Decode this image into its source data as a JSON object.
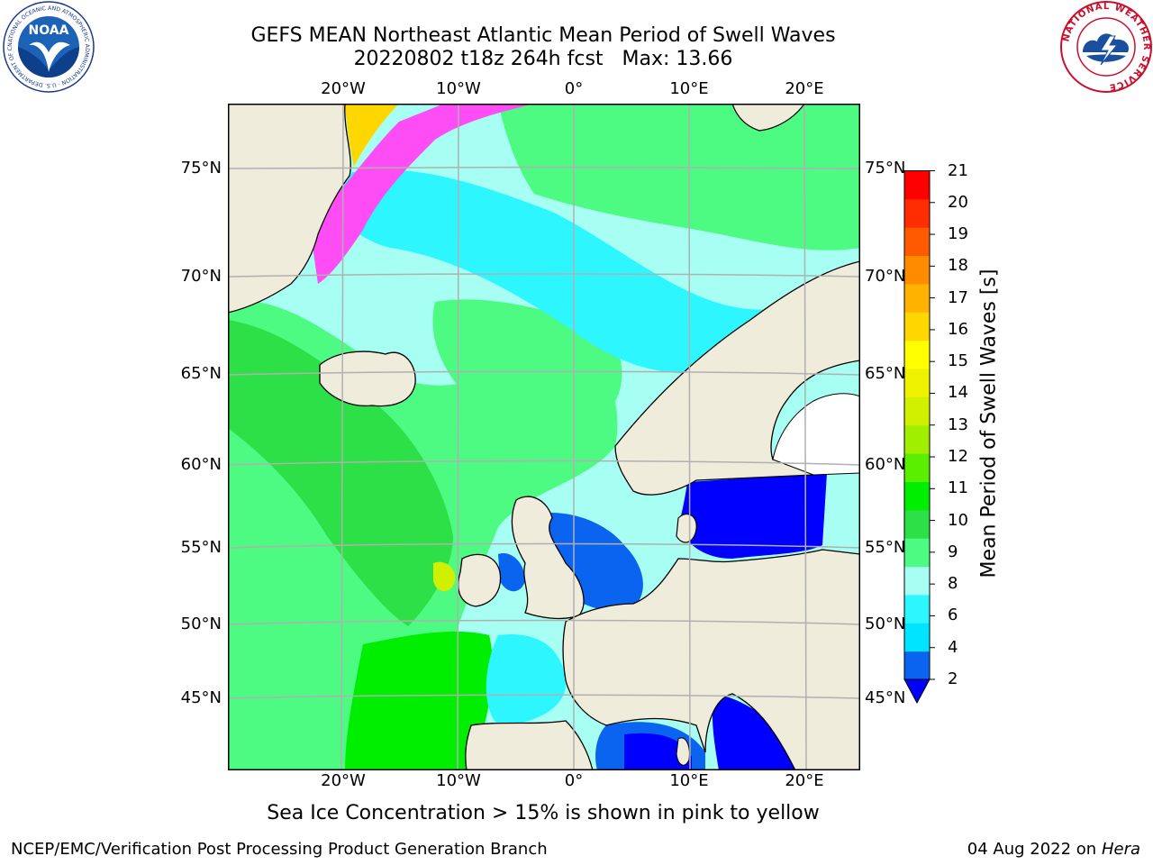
{
  "title": {
    "line1": "GEFS MEAN Northeast Atlantic Mean Period of Swell Waves",
    "line2_date": "20220802 t18z 264h fcst",
    "line2_max": "Max: 13.66"
  },
  "map": {
    "projection": "polar-stereographic",
    "lon_labels": [
      "20°W",
      "10°W",
      "0°",
      "10°E",
      "20°E"
    ],
    "lat_labels_left": [
      "75°N",
      "70°N",
      "65°N",
      "60°N",
      "55°N",
      "50°N",
      "45°N"
    ],
    "lat_labels_right": [
      "75°N",
      "70°N",
      "65°N",
      "60°N",
      "55°N",
      "50°N",
      "45°N"
    ],
    "land_color": "#efecdc",
    "grid": true,
    "region_fill": [
      {
        "region": "north-atlantic-west",
        "swell_period_s": 10
      },
      {
        "region": "bay-of-biscay",
        "swell_period_s": 5
      },
      {
        "region": "north-sea",
        "swell_period_s": 3
      },
      {
        "region": "baltic-sea",
        "swell_period_s": 2
      },
      {
        "region": "mediterranean",
        "swell_period_s": 3
      },
      {
        "region": "greenland-ice-edge",
        "sea_ice": true
      }
    ]
  },
  "colorbar": {
    "label": "Mean Period of Swell Waves [s]",
    "ticks": [
      "21",
      "20",
      "19",
      "18",
      "17",
      "16",
      "15",
      "14",
      "13",
      "12",
      "11",
      "10",
      "9",
      "8",
      "6",
      "4",
      "2"
    ],
    "colors_bottom_to_top": [
      "#0a64f0",
      "#00e5ff",
      "#2ef6ff",
      "#a6fff2",
      "#4dfa82",
      "#2de048",
      "#00ee00",
      "#5aee00",
      "#a0ee00",
      "#d0f000",
      "#eef200",
      "#ffff00",
      "#ffd700",
      "#ffb200",
      "#ff8c00",
      "#ff5a00",
      "#ff2d00",
      "#ff0000"
    ],
    "under_color": "#0000ff"
  },
  "note": "Sea Ice Concentration > 15% is shown in pink to yellow",
  "footer": {
    "credit": "NCEP/EMC/Verification Post Processing Product Generation Branch",
    "date": "04 Aug 2022 on",
    "machine": "Hera"
  },
  "logos": {
    "noaa_text": "NOAA",
    "noaa_ring": "NATIONAL OCEANIC AND ATMOSPHERIC ADMINISTRATION · U.S. DEPARTMENT OF COMMERCE",
    "nws_ring": "NATIONAL WEATHER SERVICE"
  }
}
